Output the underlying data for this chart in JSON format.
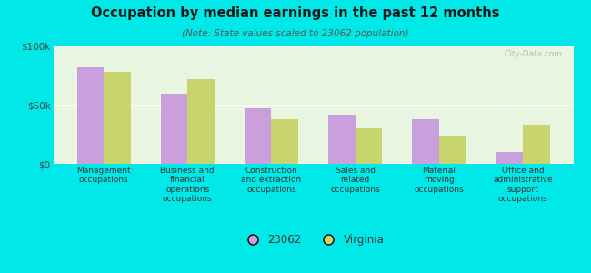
{
  "title": "Occupation by median earnings in the past 12 months",
  "subtitle": "(Note: State values scaled to 23062 population)",
  "categories": [
    "Management\noccupations",
    "Business and\nfinancial\noperations\noccupations",
    "Construction\nand extraction\noccupations",
    "Sales and\nrelated\noccupations",
    "Material\nmoving\noccupations",
    "Office and\nadministrative\nsupport\noccupations"
  ],
  "values_23062": [
    82000,
    60000,
    47000,
    42000,
    38000,
    10000
  ],
  "values_virginia": [
    78000,
    72000,
    38000,
    30000,
    23000,
    33000
  ],
  "color_23062": "#c9a0dc",
  "color_virginia": "#c8d46e",
  "legend_23062": "23062",
  "legend_virginia": "Virginia",
  "background_color": "#00e8e8",
  "plot_bg_color": "#e8f5e0",
  "ylim": [
    0,
    100000
  ],
  "yticks": [
    0,
    50000,
    100000
  ],
  "bar_width": 0.32,
  "watermark": "City-Data.com"
}
